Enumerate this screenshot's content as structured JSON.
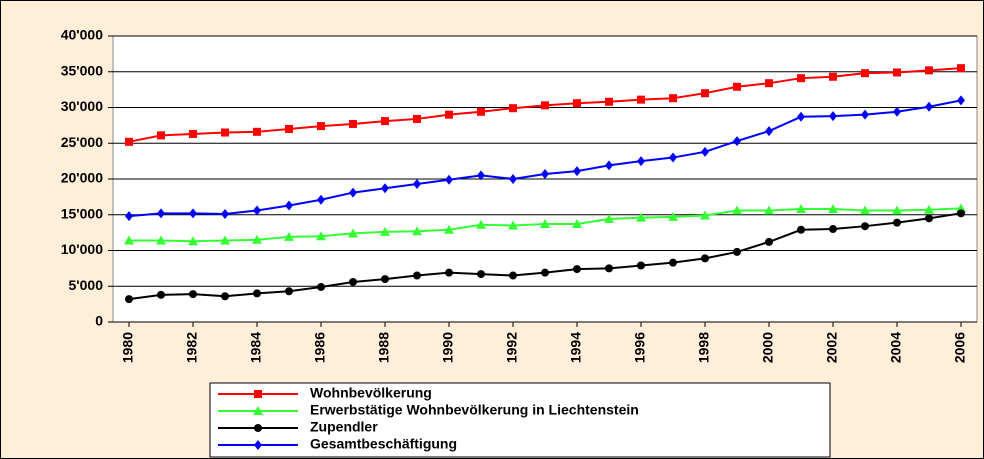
{
  "chart_data": {
    "type": "line",
    "x": [
      1980,
      1981,
      1982,
      1983,
      1984,
      1985,
      1986,
      1987,
      1988,
      1989,
      1990,
      1991,
      1992,
      1993,
      1994,
      1995,
      1996,
      1997,
      1998,
      1999,
      2000,
      2001,
      2002,
      2003,
      2004,
      2005,
      2006
    ],
    "xlim": [
      1979.5,
      2006.5
    ],
    "xticks": [
      1980,
      1982,
      1984,
      1986,
      1988,
      1990,
      1992,
      1994,
      1996,
      1998,
      2000,
      2002,
      2004,
      2006
    ],
    "ylim": [
      0,
      40000
    ],
    "yticks": [
      {
        "value": 0,
        "label": "0"
      },
      {
        "value": 5000,
        "label": "5'000"
      },
      {
        "value": 10000,
        "label": "10'000"
      },
      {
        "value": 15000,
        "label": "15'000"
      },
      {
        "value": 20000,
        "label": "20'000"
      },
      {
        "value": 25000,
        "label": "25'000"
      },
      {
        "value": 30000,
        "label": "30'000"
      },
      {
        "value": 35000,
        "label": "35'000"
      },
      {
        "value": 40000,
        "label": "40'000"
      }
    ],
    "grid": true,
    "legend": "bottom",
    "series": [
      {
        "name": "Wohnbevölkerung",
        "color": "#ff0000",
        "marker": "square",
        "values": [
          25200,
          26100,
          26300,
          26500,
          26600,
          27000,
          27400,
          27700,
          28100,
          28400,
          29000,
          29400,
          29900,
          30300,
          30600,
          30800,
          31100,
          31300,
          32000,
          32900,
          33400,
          34100,
          34300,
          34800,
          34900,
          35200,
          35500
        ]
      },
      {
        "name": "Erwerbstätige Wohnbevölkerung in Liechtenstein",
        "color": "#33ff33",
        "marker": "triangle",
        "values": [
          11400,
          11400,
          11300,
          11400,
          11500,
          11900,
          12000,
          12400,
          12600,
          12700,
          12900,
          13600,
          13500,
          13700,
          13700,
          14400,
          14600,
          14700,
          14900,
          15600,
          15600,
          15800,
          15800,
          15600,
          15600,
          15700,
          15900
        ]
      },
      {
        "name": "Zupendler",
        "color": "#000000",
        "marker": "circle",
        "values": [
          3200,
          3800,
          3900,
          3600,
          4000,
          4300,
          4900,
          5600,
          6000,
          6500,
          6900,
          6700,
          6500,
          6900,
          7400,
          7500,
          7900,
          8300,
          8900,
          9800,
          11200,
          12900,
          13000,
          13400,
          13900,
          14500,
          15200
        ]
      },
      {
        "name": "Gesamtbeschäftigung",
        "color": "#0000ff",
        "marker": "diamond",
        "values": [
          14800,
          15200,
          15200,
          15100,
          15600,
          16300,
          17100,
          18100,
          18700,
          19300,
          19900,
          20500,
          20000,
          20700,
          21100,
          21900,
          22500,
          23000,
          23800,
          25300,
          26700,
          28700,
          28800,
          29000,
          29400,
          30100,
          31000
        ]
      }
    ]
  }
}
